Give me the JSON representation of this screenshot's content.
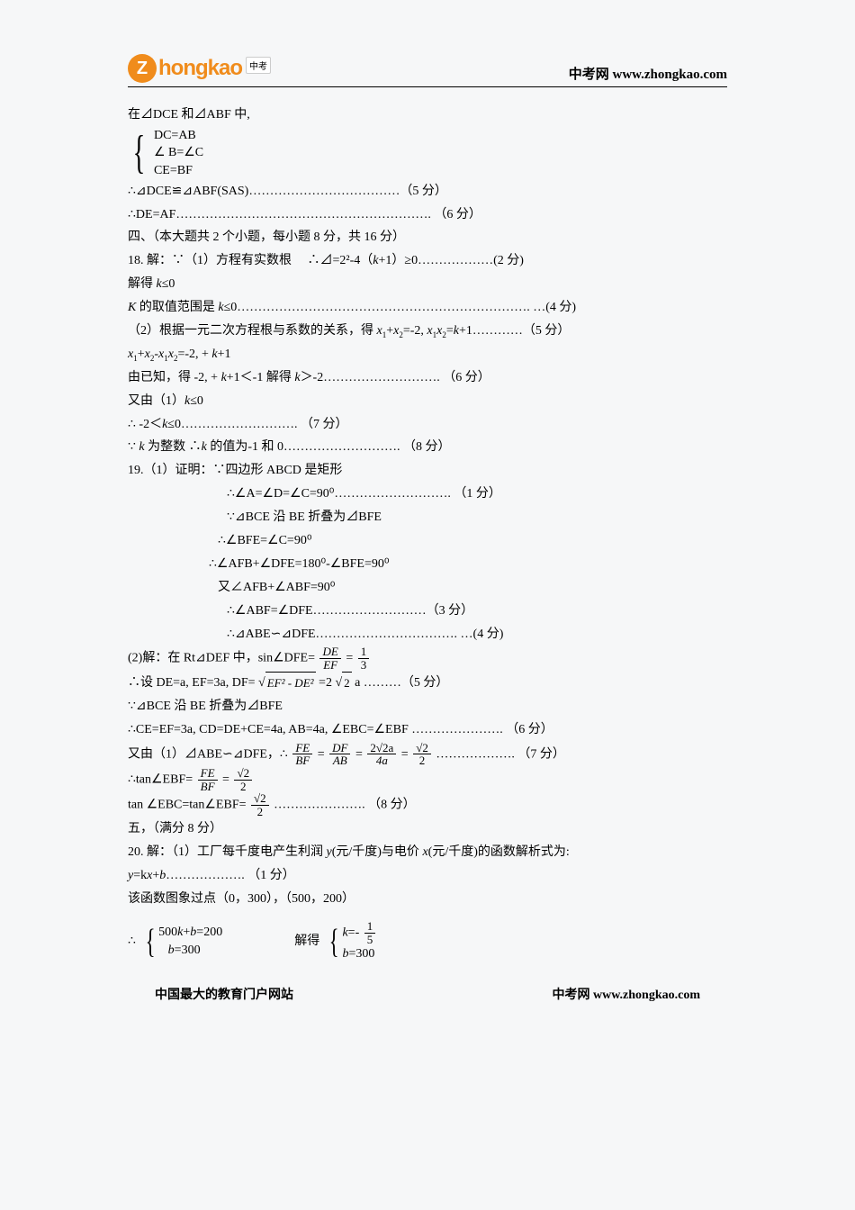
{
  "header": {
    "logo_z": "Z",
    "logo_text": "hongkao",
    "logo_badge": "中考",
    "site_label": "中考网 www.zhongkao.com"
  },
  "lines": {
    "l1": "在⊿DCE 和⊿ABF 中,",
    "brace_dc": "DC=AB",
    "brace_angle": "∠ B=∠C",
    "brace_ce": "CE=BF",
    "l2": "∴⊿DCE≌⊿ABF(SAS)………………………………（5 分）",
    "l3": "∴DE=AF…………………………………………………….   （6 分）",
    "l4": "四、（本大题共 2 个小题，每小题 8 分，共 16 分）",
    "l5_a": "18. 解：∵（1）方程有实数根",
    "l5_b": "∴⊿=2²-4（",
    "l5_k": "k",
    "l5_c": "+1）≥0………………(2 分)",
    "l6_a": "解得   ",
    "l6_k": "k",
    "l6_b": "≤0",
    "l7_a": "K",
    "l7_b": " 的取值范围是 ",
    "l7_k": "k",
    "l7_c": "≤0……………………………………………………………. …(4 分)",
    "l8_a": "（2）根据一元二次方程根与系数的关系，得 ",
    "l8_x1": "x",
    "l8_plus": "+",
    "l8_x2": "x",
    "l8_b": "=-2,    ",
    "l8_x1b": "x",
    "l8_x2b": "x",
    "l8_c": "=",
    "l8_k": "k",
    "l8_d": "+1…………（5 分）",
    "l9_a": "x",
    "l9_b": "+",
    "l9_c": "x",
    "l9_d": "-",
    "l9_e": "x",
    "l9_f": "x",
    "l9_g": "=-2, + ",
    "l9_k": "k",
    "l9_h": "+1",
    "l10_a": "由已知，得  -2, + ",
    "l10_k": "k",
    "l10_b": "+1＜-1    解得  ",
    "l10_k2": "k",
    "l10_c": "＞-2……………………….  （6 分）",
    "l11_a": "又由（1）",
    "l11_k": "k",
    "l11_b": "≤0",
    "l12_a": "∴     -2＜",
    "l12_k": "k",
    "l12_b": "≤0……………………….  （7 分）",
    "l13_a": "∵    ",
    "l13_k": "k",
    "l13_b": " 为整数     ∴",
    "l13_k2": "k",
    "l13_c": " 的值为-1 和 0……………………….  （8 分）",
    "l14": "19.（1）证明：∵四边形 ABCD 是矩形",
    "l15": "∴∠A=∠D=∠C=90⁰……………………….  （1 分）",
    "l16": "∵⊿BCE 沿 BE 折叠为⊿BFE",
    "l17": "∴∠BFE=∠C=90⁰",
    "l18": "∴∠AFB+∠DFE=180⁰-∠BFE=90⁰",
    "l19": "又∠AFB+∠ABF=90⁰",
    "l20": "∴∠ABF=∠DFE………………………（3 分）",
    "l21": "∴⊿ABE∽⊿DFE……………………………. …(4 分)",
    "l22_a": "(2)解：在 Rt⊿DEF 中，sin∠DFE=",
    "l22_de": "DE",
    "l22_ef": "EF",
    "l22_eq": "=",
    "l22_1": "1",
    "l22_3": "3",
    "l23_a": "∴设 DE=a, EF=3a, DF=",
    "l23_arg": "EF² - DE²",
    "l23_b": "=2",
    "l23_s2": "2",
    "l23_c": "a   ………（5 分）",
    "l24": "∵⊿BCE 沿 BE 折叠为⊿BFE",
    "l25": "∴CE=EF=3a, CD=DE+CE=4a, AB=4a,  ∠EBC=∠EBF ………………….  （6 分）",
    "l26_a": "又由（1）⊿ABE∽⊿DFE，∴",
    "l26_fe": "FE",
    "l26_bf": "BF",
    "l26_eq1": "=",
    "l26_df": "DF",
    "l26_ab": "AB",
    "l26_eq2": "=",
    "l26_num3": "2√2a",
    "l26_den3": "4a",
    "l26_eq3": "=",
    "l26_s2n": "√2",
    "l26_2d": "2",
    "l26_b": "……………….  （7 分）",
    "l27_a": "∴tan∠EBF=",
    "l27_fe": "FE",
    "l27_bf": "BF",
    "l27_eq": "=",
    "l27_n": "√2",
    "l27_d": "2",
    "l28_a": "tan ∠EBC=tan∠EBF=",
    "l28_n": "√2",
    "l28_d": "2",
    "l28_b": " ………………….  （8 分）",
    "l29": "  五，（满分 8 分）",
    "l30_a": "20. 解：（1）工厂每千度电产生利润 ",
    "l30_y": "y",
    "l30_b": "(元/千度)与电价 ",
    "l30_x": "x",
    "l30_c": "(元/千度)的函数解析式为:",
    "l31_a": "y",
    "l31_b": "=k",
    "l31_x": "x",
    "l31_c": "+",
    "l31_d": "b",
    "l31_e": "……………….  （1 分）",
    "l32": "该函数图象过点（0，300），（500，200）",
    "sys_therefore": "∴",
    "sys1_a": "500",
    "sys1_k": "k",
    "sys1_b": "+",
    "sys1_bi": "b",
    "sys1_c": "=200",
    "sys1_d": "b",
    "sys1_e": "=300",
    "sys_solve": "解得",
    "sys2_k": "k",
    "sys2_a": "=-",
    "sys2_1": "1",
    "sys2_5": "5",
    "sys2_b": "b",
    "sys2_c": "=300"
  },
  "footer": {
    "left": "中国最大的教育门户网站",
    "right": "中考网 www.zhongkao.com"
  }
}
